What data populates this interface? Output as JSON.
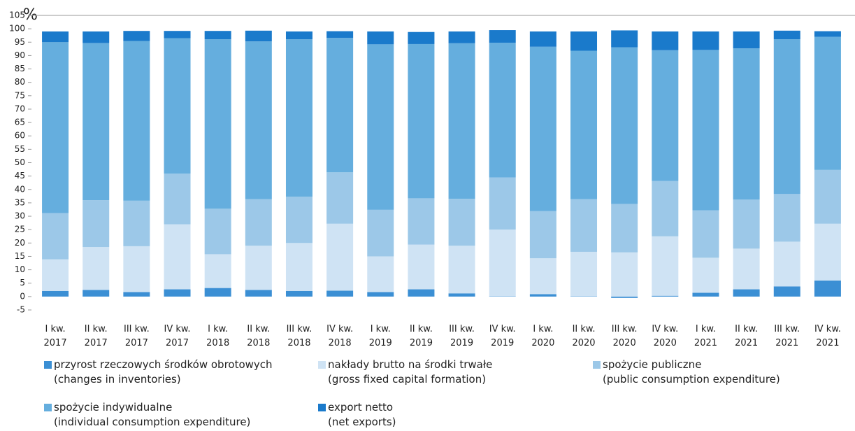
{
  "chart_data": {
    "type": "stacked_bar",
    "y_label": "%",
    "categories": [
      "I kw. 2017",
      "II kw. 2017",
      "III kw. 2017",
      "IV kw. 2017",
      "I kw. 2018",
      "II kw. 2018",
      "III kw. 2018",
      "IV kw. 2018",
      "I kw. 2019",
      "II kw. 2019",
      "III kw. 2019",
      "IV kw. 2019",
      "I kw. 2020",
      "II kw. 2020",
      "III kw. 2020",
      "IV kw. 2020",
      "I kw. 2021",
      "II kw. 2021",
      "III kw. 2021",
      "IV kw. 2021"
    ],
    "series": [
      {
        "name": "przyrost rzeczowych środków obrotowych\n(changes in inventories)",
        "color": "#3b8fd4",
        "values": [
          2.1,
          2.5,
          1.7,
          2.7,
          3.2,
          2.5,
          2.1,
          2.2,
          1.7,
          2.7,
          1.2,
          0.1,
          0.9,
          0.1,
          -0.5,
          0.3,
          1.4,
          2.7,
          3.8,
          6.0
        ]
      },
      {
        "name": "nakłady brutto na środki trwałe\n(gross fixed capital formation)",
        "color": "#cfe3f4",
        "values": [
          11.8,
          16.0,
          17.1,
          24.3,
          12.6,
          16.5,
          17.9,
          25.0,
          13.3,
          16.7,
          17.8,
          24.9,
          13.4,
          16.6,
          16.5,
          22.2,
          13.1,
          15.2,
          16.7,
          21.2
        ]
      },
      {
        "name": "spożycie publiczne\n(public consumption expenditure)",
        "color": "#9cc8e8",
        "values": [
          17.3,
          17.5,
          17.0,
          18.9,
          17.0,
          17.4,
          17.3,
          19.2,
          17.4,
          17.3,
          17.5,
          19.5,
          17.6,
          19.7,
          18.1,
          20.7,
          17.7,
          18.3,
          17.8,
          20.1
        ]
      },
      {
        "name": "spożycie indywidualne\n(individual consumption expenditure)",
        "color": "#65aede",
        "values": [
          63.8,
          58.7,
          59.6,
          50.6,
          63.3,
          58.9,
          58.8,
          50.2,
          61.8,
          57.6,
          58.1,
          50.3,
          61.4,
          55.4,
          58.5,
          48.8,
          59.9,
          56.5,
          57.8,
          49.7
        ]
      },
      {
        "name": "export netto\n(net exports)",
        "color": "#1a7acb",
        "values": [
          4.0,
          4.3,
          3.8,
          2.7,
          3.1,
          4.0,
          2.9,
          2.5,
          4.8,
          4.5,
          4.4,
          4.7,
          5.7,
          7.2,
          6.3,
          7.0,
          6.9,
          6.3,
          3.2,
          2.1
        ]
      }
    ],
    "ylim": [
      -5,
      105
    ],
    "yticks": [
      -5,
      0,
      5,
      10,
      15,
      20,
      25,
      30,
      35,
      40,
      45,
      50,
      55,
      60,
      65,
      70,
      75,
      80,
      85,
      90,
      95,
      100,
      105
    ],
    "grid": false
  }
}
